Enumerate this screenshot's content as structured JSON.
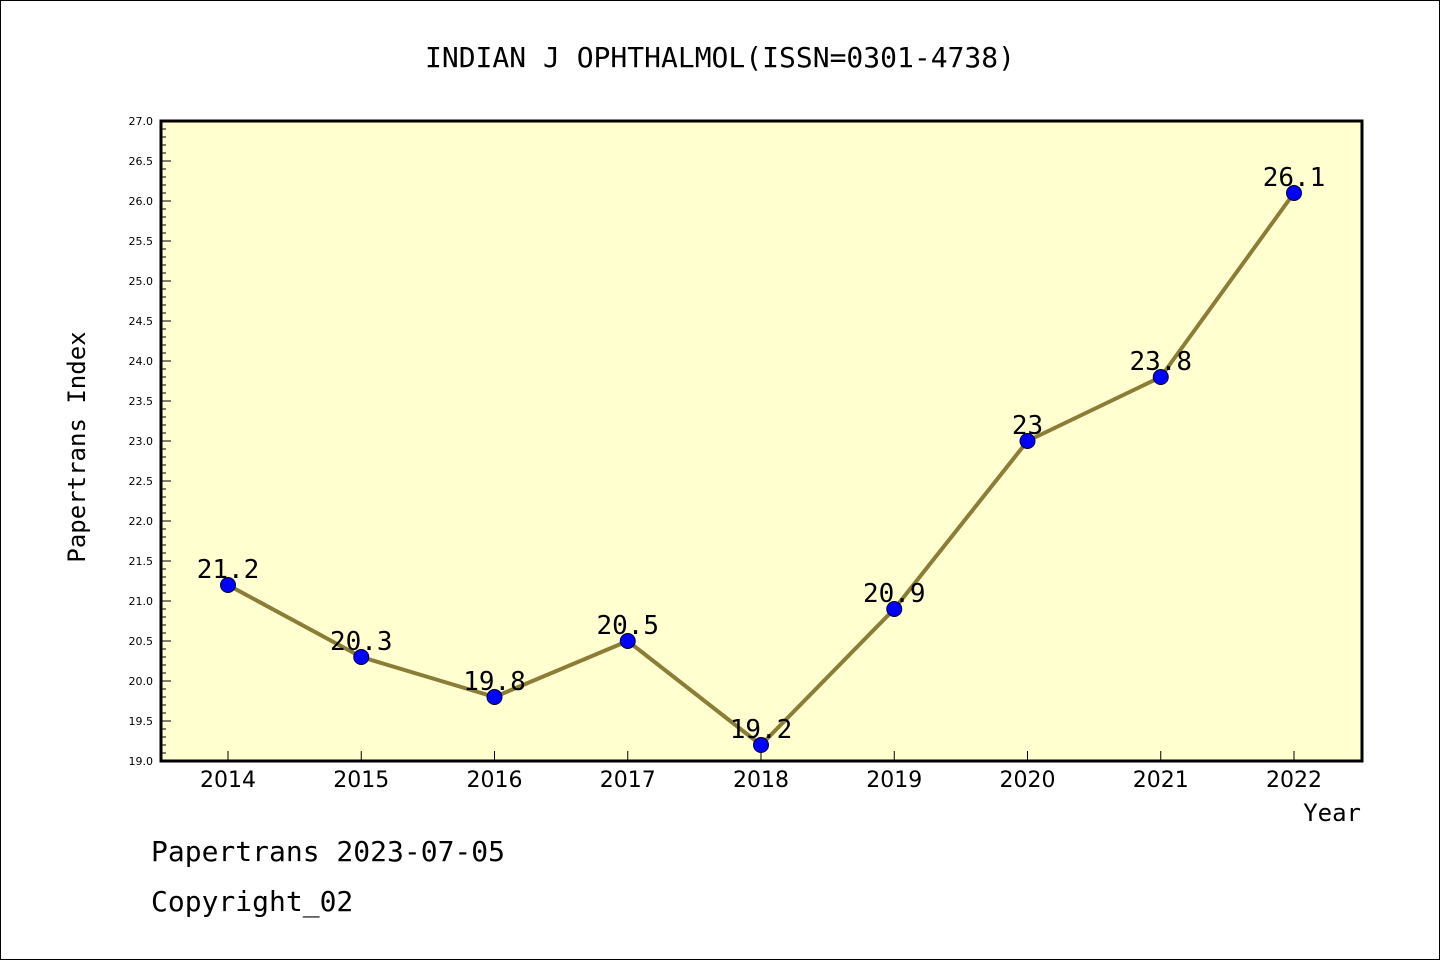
{
  "chart_data": {
    "type": "line",
    "title": "INDIAN J OPHTHALMOL(ISSN=0301-4738)",
    "xlabel": "Year",
    "ylabel": "Papertrans Index",
    "categories": [
      "2014",
      "2015",
      "2016",
      "2017",
      "2018",
      "2019",
      "2020",
      "2021",
      "2022"
    ],
    "series": [
      {
        "values": [
          21.2,
          20.3,
          19.8,
          20.5,
          19.2,
          20.9,
          23,
          23.8,
          26.1
        ],
        "labels": [
          "21.2",
          "20.3",
          "19.8",
          "20.5",
          "19.2",
          "20.9",
          "23",
          "23.8",
          "26.1"
        ]
      }
    ],
    "ylim": [
      19.0,
      27.0
    ],
    "yticks": [
      "19.0",
      "19.5",
      "20.0",
      "20.5",
      "21.0",
      "21.5",
      "22.0",
      "22.5",
      "23.0",
      "23.5",
      "24.0",
      "24.5",
      "25.0",
      "25.5",
      "26.0",
      "26.5",
      "27.0"
    ],
    "grid": false,
    "colors": {
      "plot_background": "#FFFFD0",
      "line": "#8B7D35",
      "marker": "#0000FF"
    }
  },
  "footer": {
    "line1": "Papertrans 2023-07-05",
    "line2": "Copyright_02"
  }
}
